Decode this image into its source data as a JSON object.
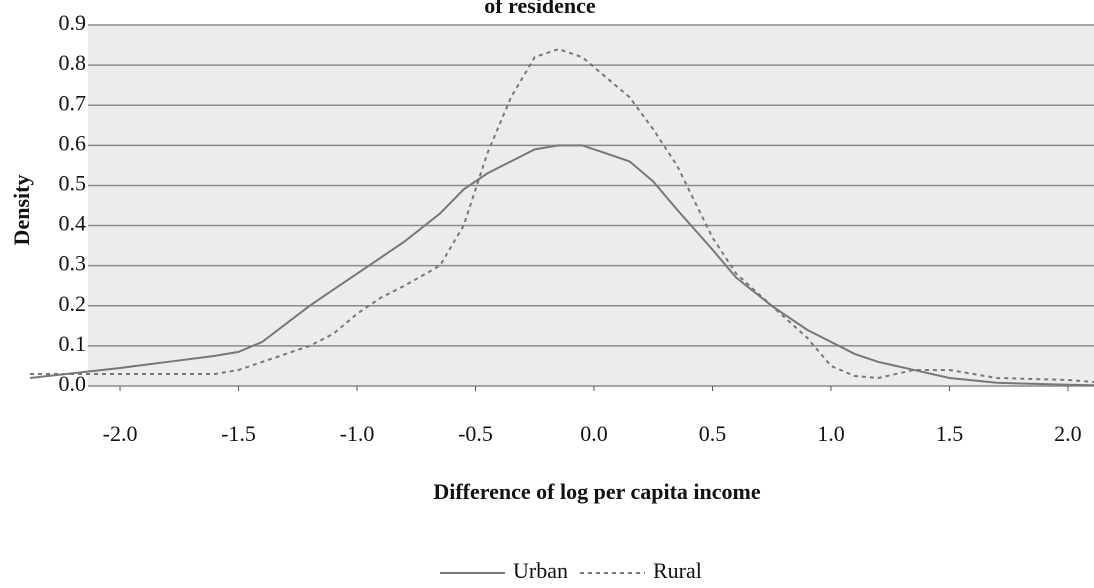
{
  "chart_data": {
    "type": "line",
    "title": "of residence",
    "x_label": "Difference of log per capita income",
    "y_label": "Density",
    "x": [
      -2.38,
      -2.0,
      -1.8,
      -1.6,
      -1.5,
      -1.4,
      -1.2,
      -1.1,
      -1.0,
      -0.9,
      -0.8,
      -0.65,
      -0.55,
      -0.45,
      -0.35,
      -0.25,
      -0.15,
      -0.05,
      0.05,
      0.15,
      0.25,
      0.35,
      0.5,
      0.6,
      0.75,
      0.9,
      1.0,
      1.1,
      1.2,
      1.35,
      1.5,
      1.7,
      2.0,
      2.11
    ],
    "series": [
      {
        "name": "Urban",
        "color": "#777777",
        "dash": false,
        "values": [
          0.02,
          0.045,
          0.06,
          0.075,
          0.085,
          0.11,
          0.2,
          0.24,
          0.28,
          0.32,
          0.36,
          0.43,
          0.49,
          0.53,
          0.56,
          0.59,
          0.6,
          0.6,
          0.58,
          0.56,
          0.51,
          0.44,
          0.34,
          0.27,
          0.2,
          0.14,
          0.11,
          0.08,
          0.06,
          0.04,
          0.02,
          0.008,
          0.003,
          0.002
        ]
      },
      {
        "name": "Rural",
        "color": "#777777",
        "dash": true,
        "values": [
          0.03,
          0.03,
          0.03,
          0.03,
          0.04,
          0.06,
          0.1,
          0.13,
          0.18,
          0.22,
          0.25,
          0.3,
          0.4,
          0.58,
          0.72,
          0.82,
          0.84,
          0.82,
          0.77,
          0.72,
          0.64,
          0.55,
          0.37,
          0.28,
          0.2,
          0.12,
          0.05,
          0.025,
          0.02,
          0.04,
          0.04,
          0.02,
          0.015,
          0.01
        ]
      }
    ],
    "xlim": [
      -2.38,
      2.11
    ],
    "ylim": [
      0,
      0.9
    ],
    "xticks": [
      {
        "value": -2,
        "label": "-2.0"
      },
      -1.5,
      {
        "value": -1,
        "label": "-1.0"
      },
      -0.5,
      {
        "value": 0,
        "label": "0.0"
      },
      0.5,
      {
        "value": 1,
        "label": "1.0"
      },
      1.5,
      {
        "value": 2,
        "label": "2.0"
      }
    ],
    "yticks": [
      {
        "value": 0,
        "label": "0.0"
      },
      0.1,
      0.2,
      0.3,
      0.4,
      0.5,
      0.6,
      0.7,
      0.8,
      0.9
    ],
    "grid": true,
    "legend": "bottom"
  }
}
